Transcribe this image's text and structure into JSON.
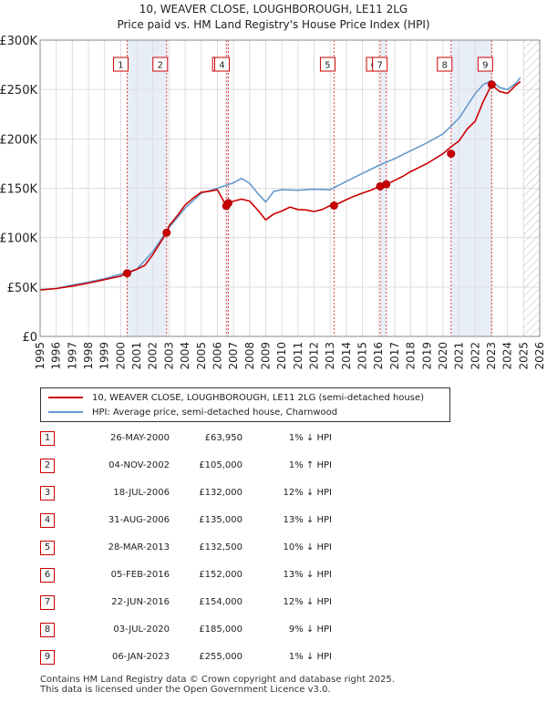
{
  "title_line1": "10, WEAVER CLOSE, LOUGHBOROUGH, LE11 2LG",
  "title_line2": "Price paid vs. HM Land Registry's House Price Index (HPI)",
  "chart_data": {
    "type": "line",
    "title": "10, WEAVER CLOSE, LOUGHBOROUGH, LE11 2LG — Price paid vs. HM Land Registry's House Price Index (HPI)",
    "xlim": [
      1995,
      2026
    ],
    "ylim": [
      0,
      300000
    ],
    "x_ticks": [
      1995,
      1996,
      1997,
      1998,
      1999,
      2000,
      2001,
      2002,
      2003,
      2004,
      2005,
      2006,
      2007,
      2008,
      2009,
      2010,
      2011,
      2012,
      2013,
      2014,
      2015,
      2016,
      2017,
      2018,
      2019,
      2020,
      2021,
      2022,
      2023,
      2024,
      2025,
      2026
    ],
    "y_ticks": [
      {
        "value": 0,
        "label": "£0"
      },
      {
        "value": 50000,
        "label": "£50K"
      },
      {
        "value": 100000,
        "label": "£100K"
      },
      {
        "value": 150000,
        "label": "£150K"
      },
      {
        "value": 200000,
        "label": "£200K"
      },
      {
        "value": 250000,
        "label": "£250K"
      },
      {
        "value": 300000,
        "label": "£300K"
      }
    ],
    "hatch_from": 2025,
    "shaded_spans": [
      [
        2000.4,
        2002.85
      ],
      [
        2006.55,
        2006.68
      ],
      [
        2016.1,
        2016.48
      ],
      [
        2020.5,
        2023.02
      ]
    ],
    "series": [
      {
        "name": "10, WEAVER CLOSE, LOUGHBOROUGH, LE11 2LG (semi-detached house)",
        "color": "#cc0000",
        "x": [
          1995,
          1996,
          1997,
          1998,
          1999,
          2000,
          2000.4,
          2001,
          2001.5,
          2002,
          2002.85,
          2003,
          2003.5,
          2004,
          2004.5,
          2005,
          2005.5,
          2006,
          2006.55,
          2006.68,
          2007,
          2007.5,
          2008,
          2008.5,
          2009,
          2009.5,
          2010,
          2010.5,
          2011,
          2011.5,
          2012,
          2012.5,
          2013,
          2013.24,
          2014,
          2014.5,
          2015,
          2015.5,
          2016.1,
          2016.48,
          2017,
          2017.5,
          2018,
          2018.5,
          2019,
          2019.5,
          2020,
          2020.5,
          2021,
          2021.5,
          2022,
          2022.5,
          2023.02,
          2023.5,
          2024,
          2024.5,
          2024.8
        ],
        "y": [
          47000,
          48500,
          51000,
          54000,
          57500,
          61000,
          63950,
          68000,
          72000,
          83000,
          105000,
          112000,
          122000,
          133000,
          140000,
          146000,
          147000,
          148500,
          132000,
          135000,
          137000,
          139000,
          137000,
          128000,
          118000,
          124000,
          127000,
          131000,
          128500,
          128000,
          126500,
          128500,
          132500,
          132500,
          138500,
          142000,
          145000,
          148000,
          152000,
          154000,
          158000,
          162000,
          167000,
          171000,
          175000,
          180000,
          185000,
          192000,
          198000,
          210000,
          218000,
          238000,
          255000,
          248000,
          246000,
          254000,
          258000
        ]
      },
      {
        "name": "HPI: Average price, semi-detached house, Charnwood",
        "color": "#6699cc",
        "x": [
          1995,
          1996,
          1997,
          1998,
          1999,
          2000,
          2001,
          2002,
          2003,
          2004,
          2005,
          2006,
          2007,
          2007.5,
          2008,
          2008.5,
          2009,
          2009.5,
          2010,
          2011,
          2012,
          2013,
          2014,
          2015,
          2016,
          2017,
          2018,
          2019,
          2020,
          2021,
          2022,
          2022.5,
          2023,
          2023.5,
          2024,
          2024.5,
          2024.8
        ],
        "y": [
          47500,
          48500,
          52000,
          55000,
          58500,
          63000,
          68000,
          86000,
          110000,
          130000,
          145000,
          150000,
          155500,
          160000,
          155000,
          145000,
          136000,
          147000,
          148500,
          148000,
          149000,
          148500,
          157000,
          165000,
          173000,
          180000,
          188000,
          196000,
          205000,
          221000,
          246000,
          255000,
          259000,
          252000,
          250000,
          256000,
          262000
        ]
      }
    ],
    "sale_markers": [
      {
        "num": "1",
        "x": 2000.4,
        "y": 63950
      },
      {
        "num": "2",
        "x": 2002.85,
        "y": 105000
      },
      {
        "num": "3",
        "x": 2006.55,
        "y": 132000
      },
      {
        "num": "4",
        "x": 2006.68,
        "y": 135000
      },
      {
        "num": "5",
        "x": 2013.24,
        "y": 132500
      },
      {
        "num": "6",
        "x": 2016.1,
        "y": 152000
      },
      {
        "num": "7",
        "x": 2016.48,
        "y": 154000
      },
      {
        "num": "8",
        "x": 2020.5,
        "y": 185000
      },
      {
        "num": "9",
        "x": 2023.02,
        "y": 255000
      }
    ]
  },
  "legend": {
    "property_label": "10, WEAVER CLOSE, LOUGHBOROUGH, LE11 2LG (semi-detached house)",
    "hpi_label": "HPI: Average price, semi-detached house, Charnwood",
    "property_color": "#cc0000",
    "hpi_color": "#6699cc"
  },
  "sales": [
    {
      "num": "1",
      "date": "26-MAY-2000",
      "price": "£63,950",
      "hpi": "1% ↓ HPI"
    },
    {
      "num": "2",
      "date": "04-NOV-2002",
      "price": "£105,000",
      "hpi": "1% ↑ HPI"
    },
    {
      "num": "3",
      "date": "18-JUL-2006",
      "price": "£132,000",
      "hpi": "12% ↓ HPI"
    },
    {
      "num": "4",
      "date": "31-AUG-2006",
      "price": "£135,000",
      "hpi": "13% ↓ HPI"
    },
    {
      "num": "5",
      "date": "28-MAR-2013",
      "price": "£132,500",
      "hpi": "10% ↓ HPI"
    },
    {
      "num": "6",
      "date": "05-FEB-2016",
      "price": "£152,000",
      "hpi": "13% ↓ HPI"
    },
    {
      "num": "7",
      "date": "22-JUN-2016",
      "price": "£154,000",
      "hpi": "12% ↓ HPI"
    },
    {
      "num": "8",
      "date": "03-JUL-2020",
      "price": "£185,000",
      "hpi": "9% ↓ HPI"
    },
    {
      "num": "9",
      "date": "06-JAN-2023",
      "price": "£255,000",
      "hpi": "1% ↓ HPI"
    }
  ],
  "footer_line1": "Contains HM Land Registry data © Crown copyright and database right 2025.",
  "footer_line2": "This data is licensed under the Open Government Licence v3.0."
}
